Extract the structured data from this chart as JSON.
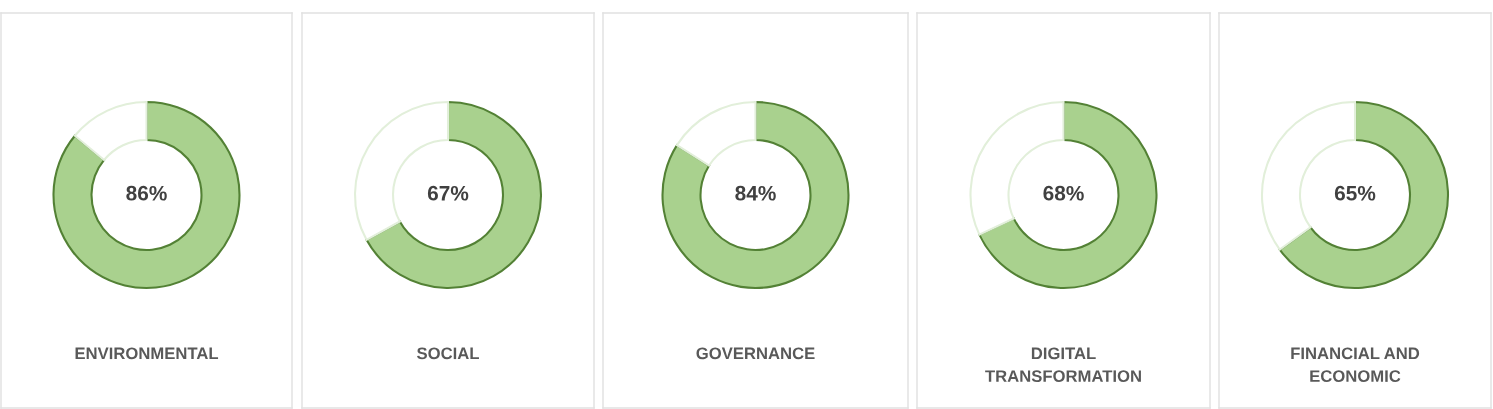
{
  "chart_data": [
    {
      "type": "donut",
      "title": "ENVIRONMENTAL",
      "categories": [
        null,
        null
      ],
      "values": [
        86,
        14
      ],
      "colors": [
        "#a9d18e",
        "#ffffff"
      ],
      "value_labels": [
        "86%",
        null
      ]
    },
    {
      "type": "donut",
      "title": "SOCIAL",
      "categories": [
        null,
        null
      ],
      "values": [
        67,
        33
      ],
      "colors": [
        "#a9d18e",
        "#ffffff"
      ],
      "value_labels": [
        "67%",
        null
      ]
    },
    {
      "type": "donut",
      "title": "GOVERNANCE",
      "categories": [
        null,
        null
      ],
      "values": [
        84,
        16
      ],
      "colors": [
        "#a9d18e",
        "#ffffff"
      ],
      "value_labels": [
        "84%",
        null
      ]
    },
    {
      "type": "donut",
      "title": "DIGITAL\nTRANSFORMATION",
      "categories": [
        null,
        null
      ],
      "values": [
        68,
        32
      ],
      "colors": [
        "#a9d18e",
        "#ffffff"
      ],
      "value_labels": [
        "68%",
        null
      ]
    },
    {
      "type": "donut",
      "title": "FINANCIAL AND\nECONOMIC",
      "categories": [
        null,
        null
      ],
      "values": [
        65,
        35
      ],
      "colors": [
        "#a9d18e",
        "#ffffff"
      ],
      "value_labels": [
        "65%",
        null
      ]
    }
  ]
}
